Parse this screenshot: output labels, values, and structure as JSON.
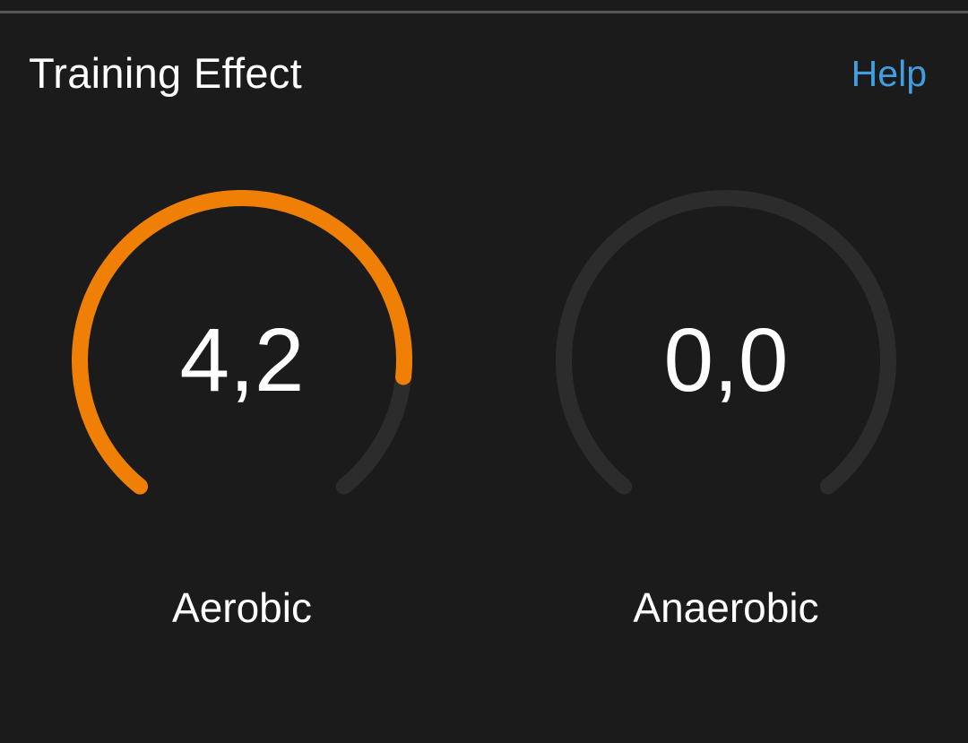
{
  "card": {
    "title": "Training Effect",
    "help_label": "Help"
  },
  "gauges": [
    {
      "value": "4,2",
      "label": "Aerobic",
      "fraction": 0.84
    },
    {
      "value": "0,0",
      "label": "Anaerobic",
      "fraction": 0.0
    }
  ],
  "colors": {
    "background": "#1b1b1b",
    "track": "#2c2c2c",
    "aerobic_fill": "#f07f06",
    "anaerobic_fill": "#f07f06",
    "help_link": "#3f9fe0",
    "text": "#ffffff"
  }
}
